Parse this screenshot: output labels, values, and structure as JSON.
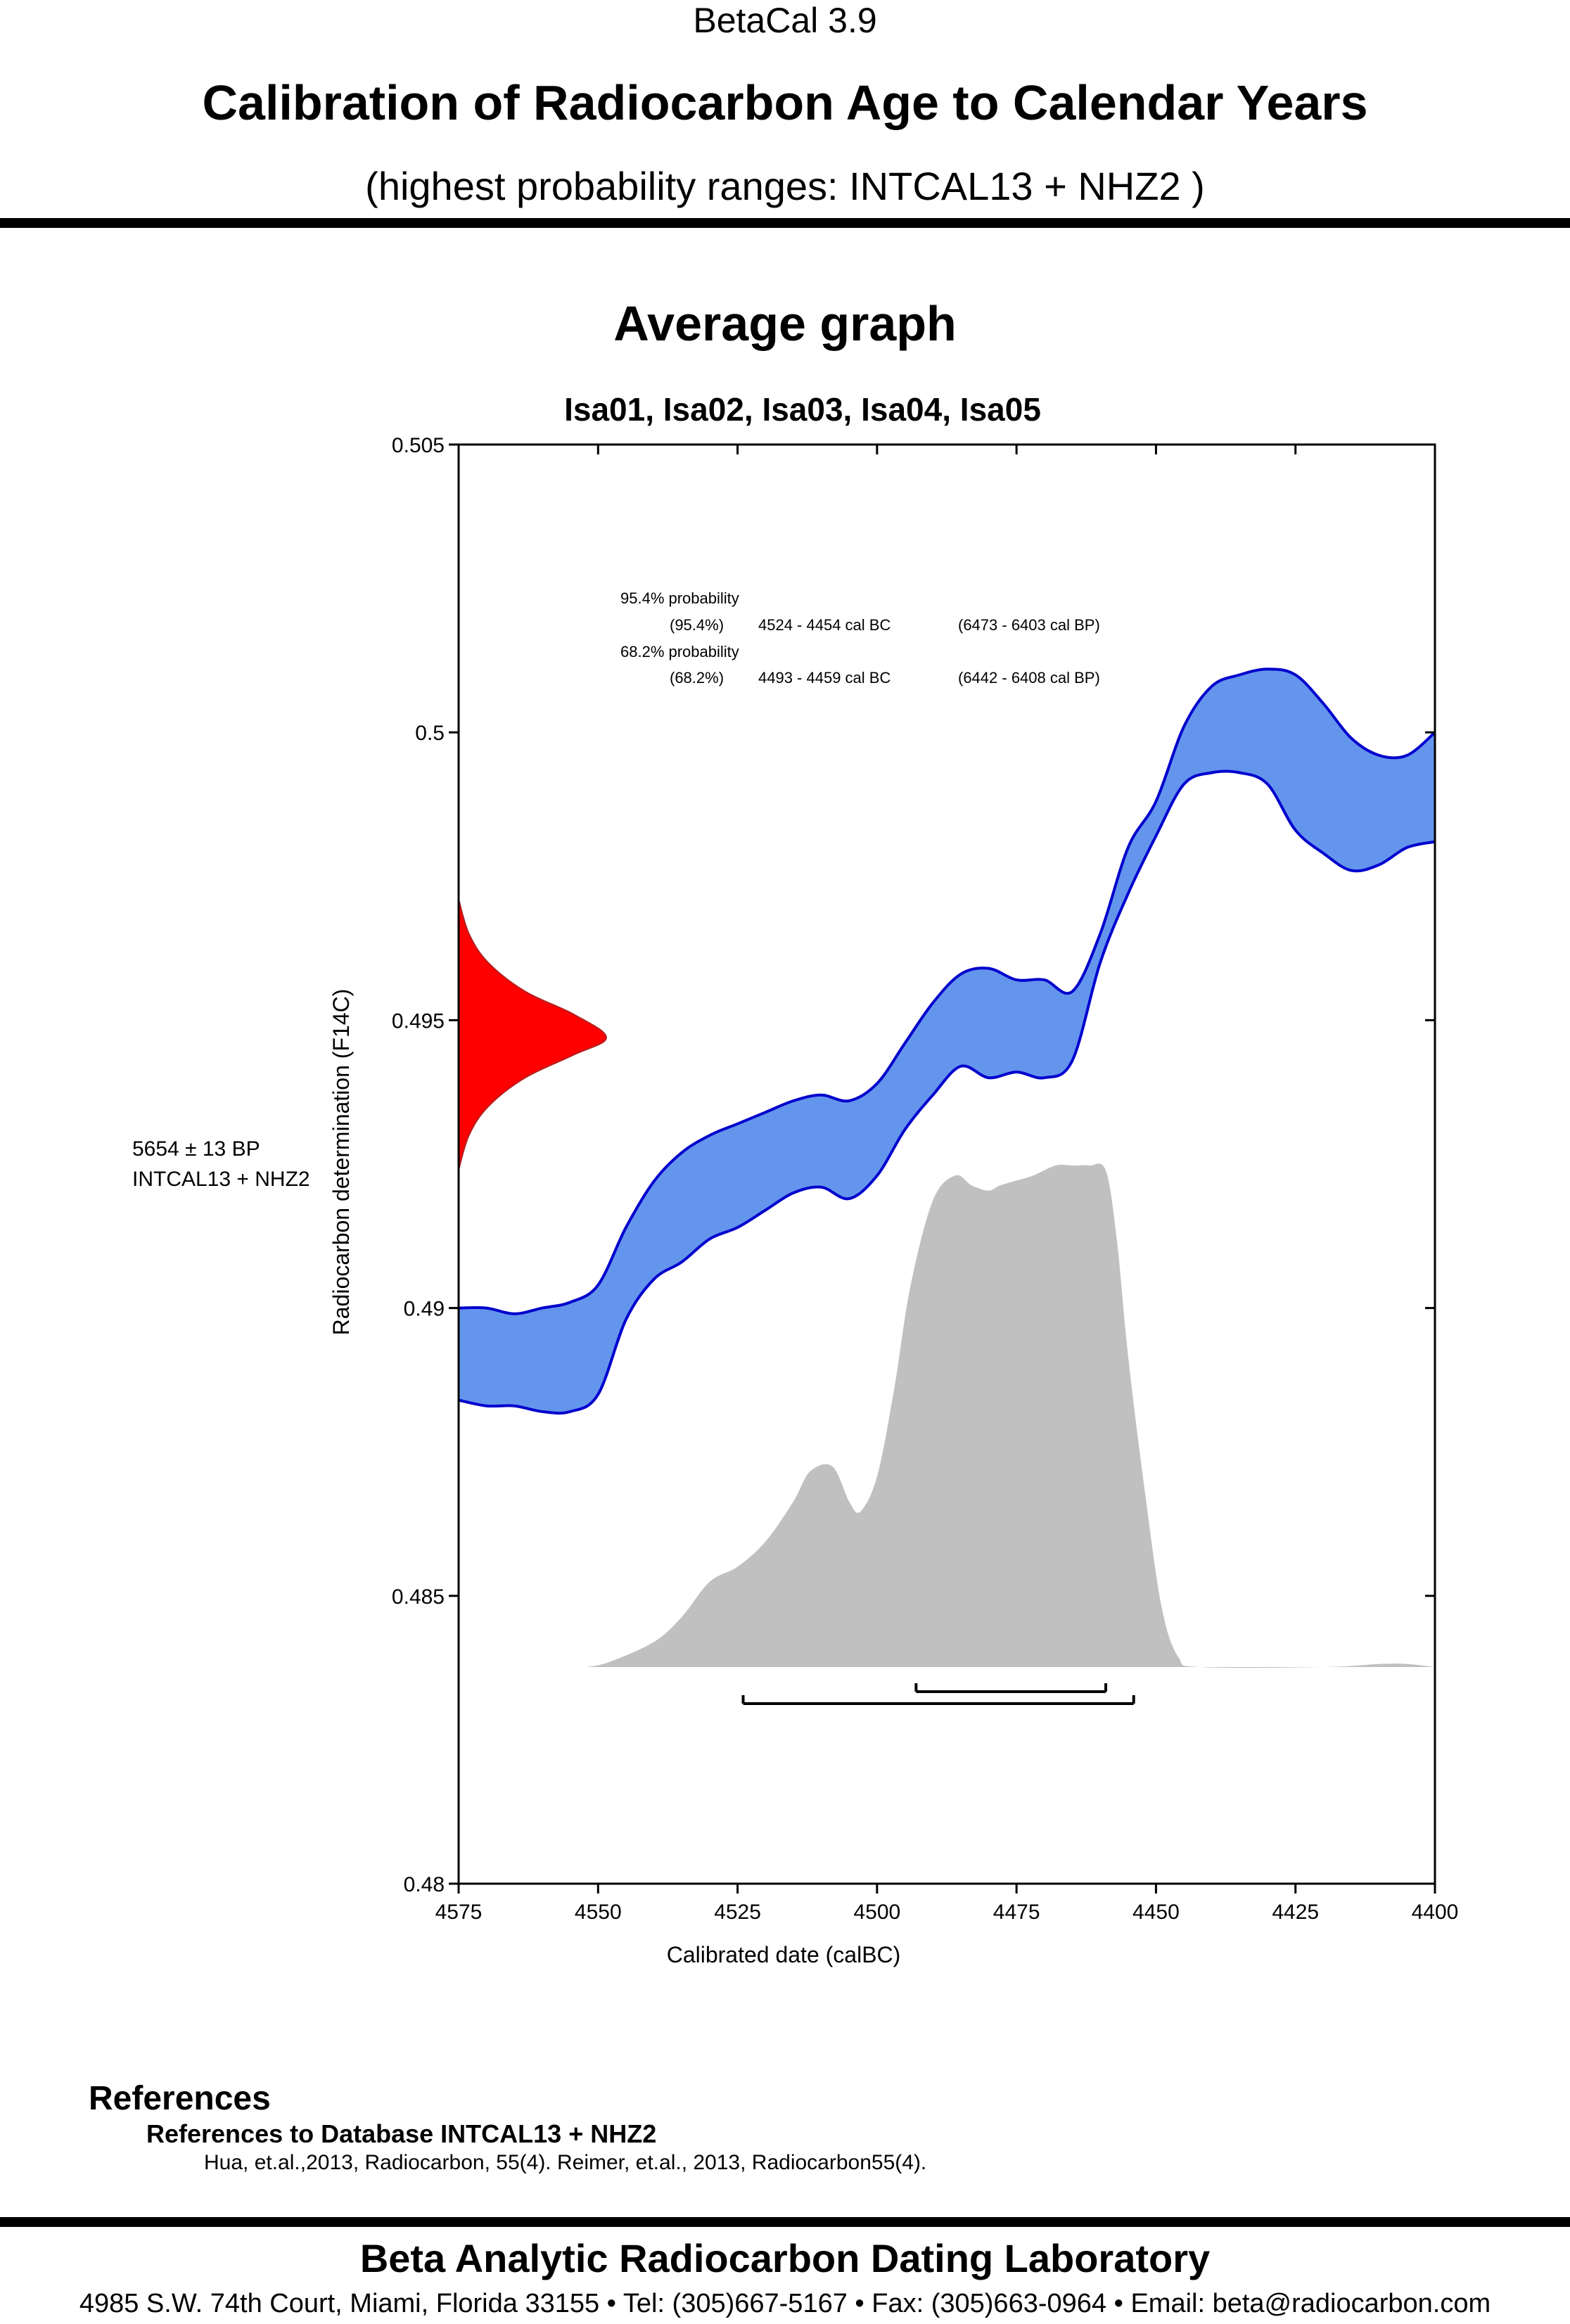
{
  "header": {
    "app_title": "BetaCal 3.9",
    "main_title": "Calibration of Radiocarbon Age to Calendar Years",
    "subtitle": "(highest probability ranges: INTCAL13 + NHZ2 )"
  },
  "section_title": "Average graph",
  "chart_data": {
    "type": "area",
    "title": "Isa01, Isa02, Isa03, Isa04, Isa05",
    "xlabel": "Calibrated date (calBC)",
    "ylabel": "Radiocarbon determination (F14C)",
    "xlim": [
      4575,
      4400
    ],
    "ylim": [
      0.48,
      0.505
    ],
    "x_reversed": true,
    "xticks": [
      4575,
      4550,
      4525,
      4500,
      4475,
      4450,
      4425,
      4400
    ],
    "xtick_labels": [
      "4575",
      "4550",
      "4525",
      "4500",
      "4475",
      "4450",
      "4425",
      "4400"
    ],
    "yticks": [
      0.48,
      0.485,
      0.49,
      0.495,
      0.5,
      0.505
    ],
    "ytick_labels": [
      "0.48",
      "0.485",
      "0.49",
      "0.495",
      "0.5",
      "0.505"
    ],
    "grid": false,
    "colors": {
      "calibration_fill": "#6495ED",
      "calibration_edge": "#0000CD",
      "sample_fill": "#FF0000",
      "probability_fill": "#C0C0C0",
      "range_bar": "#000000"
    },
    "calibration_band": {
      "x": [
        4575,
        4570,
        4565,
        4560,
        4555,
        4550,
        4545,
        4540,
        4535,
        4530,
        4525,
        4520,
        4515,
        4510,
        4505,
        4500,
        4495,
        4490,
        4485,
        4480,
        4475,
        4470,
        4465,
        4460,
        4455,
        4450,
        4445,
        4440,
        4435,
        4430,
        4425,
        4420,
        4415,
        4410,
        4405,
        4400
      ],
      "upper": [
        0.49,
        0.49,
        0.4899,
        0.49,
        0.4901,
        0.4904,
        0.4914,
        0.4922,
        0.4927,
        0.493,
        0.4932,
        0.4934,
        0.4936,
        0.4937,
        0.4936,
        0.4939,
        0.4946,
        0.4953,
        0.4958,
        0.4959,
        0.4957,
        0.4957,
        0.4955,
        0.4965,
        0.498,
        0.4988,
        0.5001,
        0.5008,
        0.501,
        0.5011,
        0.501,
        0.5005,
        0.4999,
        0.4996,
        0.4996,
        0.5
      ],
      "lower": [
        0.4884,
        0.4883,
        0.4883,
        0.4882,
        0.4882,
        0.4885,
        0.4898,
        0.4905,
        0.4908,
        0.4912,
        0.4914,
        0.4917,
        0.492,
        0.4921,
        0.4919,
        0.4923,
        0.4931,
        0.4937,
        0.4942,
        0.494,
        0.4941,
        0.494,
        0.4943,
        0.496,
        0.4972,
        0.4982,
        0.4991,
        0.4993,
        0.4993,
        0.4991,
        0.4983,
        0.4979,
        0.4976,
        0.4977,
        0.498,
        0.4981
      ]
    },
    "sample_distribution": {
      "label": "5654 ± 13 BP",
      "database": "INTCAL13 + NHZ2",
      "mean_f14c": 0.4947,
      "y": [
        0.4924,
        0.493,
        0.4935,
        0.494,
        0.4944,
        0.4947,
        0.4951,
        0.4955,
        0.496,
        0.4965,
        0.4971
      ],
      "density": [
        0.0,
        0.07,
        0.2,
        0.45,
        0.78,
        1.0,
        0.78,
        0.45,
        0.2,
        0.07,
        0.0
      ]
    },
    "calendar_probability": {
      "x": [
        4552,
        4548,
        4540,
        4535,
        4530,
        4525,
        4520,
        4515,
        4512,
        4508,
        4505,
        4503,
        4500,
        4497,
        4494,
        4490,
        4486,
        4483,
        4480,
        4478,
        4475,
        4472,
        4468,
        4465,
        4462,
        4459,
        4457,
        4455,
        4452,
        4449,
        4446,
        4442,
        4420,
        4410,
        4405,
        4400
      ],
      "density": [
        0.0,
        0.01,
        0.05,
        0.1,
        0.17,
        0.2,
        0.25,
        0.33,
        0.39,
        0.4,
        0.33,
        0.31,
        0.38,
        0.55,
        0.76,
        0.93,
        0.98,
        0.96,
        0.95,
        0.96,
        0.97,
        0.98,
        1.0,
        1.0,
        1.0,
        0.99,
        0.85,
        0.62,
        0.35,
        0.12,
        0.02,
        0.0,
        0.0,
        0.006,
        0.006,
        0.0
      ]
    },
    "ranges": [
      {
        "label": "95.4% probability",
        "percent": "(95.4%)",
        "cal_bc": "4524 - 4454 cal BC",
        "cal_bp": "(6473 - 6403 cal BP)",
        "from": 4524,
        "to": 4454
      },
      {
        "label": "68.2% probability",
        "percent": "(68.2%)",
        "cal_bc": "4493 - 4459 cal BC",
        "cal_bp": "(6442 - 6408 cal BP)",
        "from": 4493,
        "to": 4459
      }
    ]
  },
  "references": {
    "heading": "References",
    "db_heading": "References to Database INTCAL13 + NHZ2",
    "text": "Hua, et.al.,2013, Radiocarbon, 55(4). Reimer, et.al., 2013, Radiocarbon55(4)."
  },
  "footer": {
    "lab_name": "Beta Analytic Radiocarbon Dating Laboratory",
    "address": "4985 S.W. 74th Court, Miami, Florida 33155 • Tel: (305)667-5167 • Fax: (305)663-0964 • Email: beta@radiocarbon.com"
  }
}
